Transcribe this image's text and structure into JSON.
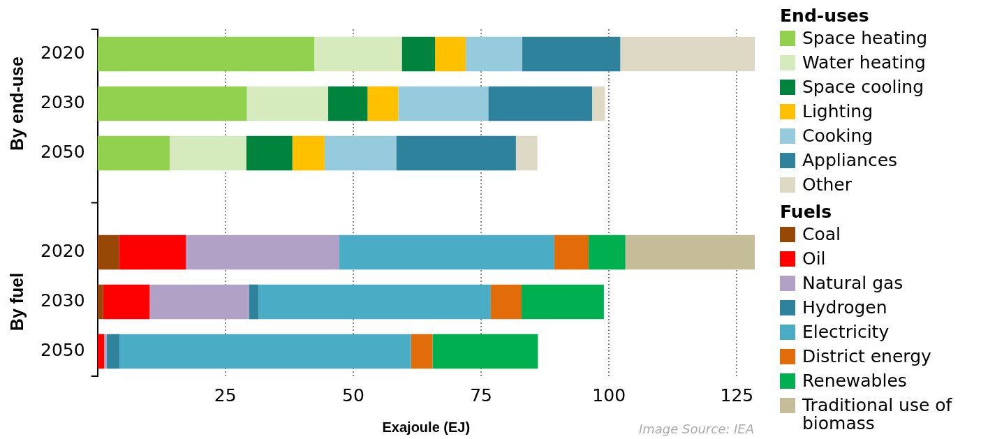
{
  "chart_data": {
    "type": "bar",
    "orientation": "horizontal",
    "stacked": true,
    "xlabel": "Exajoule (EJ)",
    "categories": [
      "2020",
      "2030",
      "2050",
      null,
      "2020",
      "2030",
      "2050"
    ],
    "series": [
      {
        "name": "Space heating",
        "color": "#92d050",
        "values": [
          42.4,
          29.2,
          14.1,
          null,
          null,
          null,
          null
        ]
      },
      {
        "name": "Water heating",
        "color": "#d5ebbd",
        "values": [
          17.1,
          15.9,
          15.0,
          null,
          null,
          null,
          null
        ]
      },
      {
        "name": "Space cooling",
        "color": "#00843d",
        "values": [
          6.5,
          7.7,
          9.0,
          null,
          null,
          null,
          null
        ]
      },
      {
        "name": "Lighting",
        "color": "#ffc000",
        "values": [
          6.0,
          6.0,
          6.3,
          null,
          null,
          null,
          null
        ]
      },
      {
        "name": "Cooking",
        "color": "#95cbdd",
        "values": [
          11.0,
          17.6,
          14.0,
          null,
          null,
          null,
          null
        ]
      },
      {
        "name": "Appliances",
        "color": "#2e829c",
        "values": [
          19.2,
          20.3,
          23.4,
          null,
          null,
          null,
          null
        ]
      },
      {
        "name": "Other",
        "color": "#ddd9c4",
        "values": [
          26.4,
          2.5,
          4.2,
          null,
          null,
          null,
          null
        ]
      },
      {
        "name": "Coal",
        "color": "#974706",
        "values": [
          null,
          null,
          null,
          null,
          4.2,
          1.1,
          0
        ]
      },
      {
        "name": "Oil",
        "color": "#ff0000",
        "values": [
          null,
          null,
          null,
          null,
          13.1,
          9.1,
          1.3
        ]
      },
      {
        "name": "Natural gas",
        "color": "#b2a1c7",
        "values": [
          null,
          null,
          null,
          null,
          29.9,
          19.4,
          0.5
        ]
      },
      {
        "name": "Hydrogen",
        "color": "#2e829c",
        "values": [
          null,
          null,
          null,
          null,
          0,
          1.9,
          2.5
        ]
      },
      {
        "name": "Electricity",
        "color": "#4bacc6",
        "values": [
          null,
          null,
          null,
          null,
          42.1,
          45.4,
          57.0
        ]
      },
      {
        "name": "District energy",
        "color": "#e36c0a",
        "values": [
          null,
          null,
          null,
          null,
          6.7,
          6.0,
          4.2
        ]
      },
      {
        "name": "Renewables",
        "color": "#00b050",
        "values": [
          null,
          null,
          null,
          null,
          7.2,
          16.1,
          20.6
        ]
      },
      {
        "name": "Traditional use of biomass",
        "color": "#c4bd97",
        "values": [
          null,
          null,
          null,
          null,
          25.3,
          0,
          0
        ]
      }
    ],
    "xlim": [
      0,
      128.5
    ],
    "xticks": [
      25,
      50,
      75,
      100,
      125
    ],
    "grid": "x",
    "legend": "right",
    "annotations": [
      "By end-use",
      "By fuel",
      "End-uses",
      "Fuels",
      "Image Source:  IEA"
    ]
  }
}
